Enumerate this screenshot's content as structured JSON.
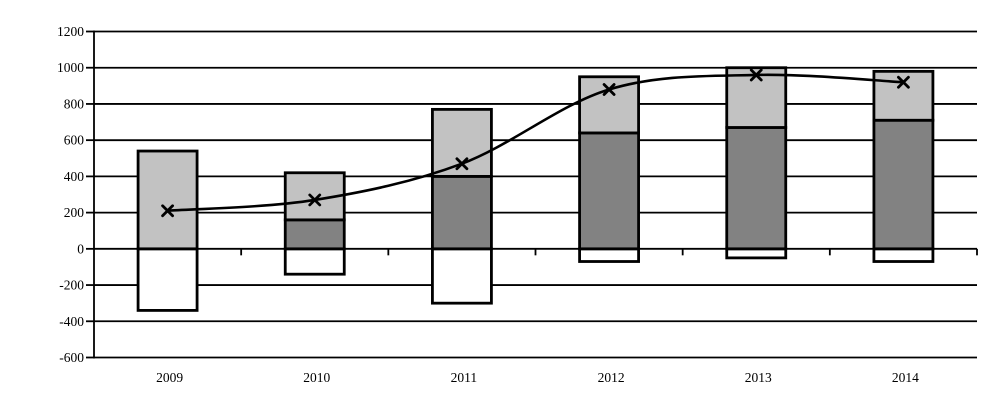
{
  "chart_data": {
    "type": "bar",
    "subtype": "stacked-bar-with-line-overlay",
    "title": "",
    "xlabel": "",
    "ylabel": "",
    "categories": [
      "2009",
      "2010",
      "2011",
      "2012",
      "2013",
      "2014"
    ],
    "series": [
      {
        "name": "dark-gray-positive-segment",
        "type": "bar",
        "stack": "positive",
        "color": "#828282",
        "values": [
          0,
          160,
          400,
          640,
          670,
          710
        ]
      },
      {
        "name": "light-gray-positive-segment",
        "type": "bar",
        "stack": "positive",
        "color": "#c2c2c2",
        "values": [
          540,
          260,
          370,
          310,
          330,
          270
        ]
      },
      {
        "name": "white-negative-segment",
        "type": "bar",
        "stack": "negative",
        "color": "#ffffff",
        "values": [
          -340,
          -140,
          -300,
          -70,
          -50,
          -70
        ]
      },
      {
        "name": "line-with-x-markers",
        "type": "line",
        "color": "#000000",
        "marker": "x",
        "values": [
          210,
          270,
          470,
          880,
          960,
          920
        ]
      }
    ],
    "bar_positive_totals": [
      540,
      420,
      770,
      950,
      1000,
      980
    ],
    "ylim": [
      -600,
      1200
    ],
    "ytick_step": 200,
    "ytick_labels": [
      "1200",
      "1000",
      "800",
      "600",
      "400",
      "200",
      "0",
      "-200",
      "-400",
      "-600"
    ],
    "grid": true,
    "legend": "none",
    "axis_color": "#000000",
    "background_color": "#ffffff"
  }
}
